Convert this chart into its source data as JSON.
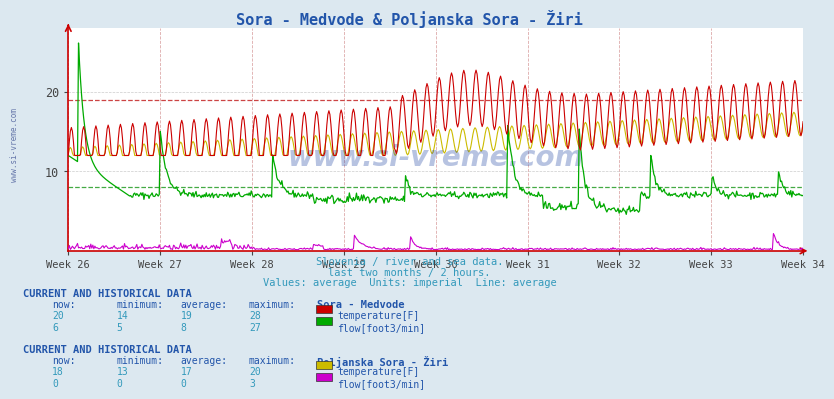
{
  "title": "Sora - Medvode & Poljanska Sora - Žiri",
  "bg_color": "#dce8f0",
  "plot_bg_color": "#ffffff",
  "subtitle_lines": [
    "Slovenia / river and sea data.",
    "last two months / 2 hours.",
    "Values: average  Units: imperial  Line: average"
  ],
  "x_tick_labels": [
    "Week 26",
    "Week 27",
    "Week 28",
    "Week 29",
    "Week 30",
    "Week 31",
    "Week 32",
    "Week 33",
    "Week 34"
  ],
  "ylim": [
    0,
    28
  ],
  "yticks": [
    10,
    20
  ],
  "n_points": 720,
  "avg_lines": {
    "red_avg": 19,
    "green_avg": 8
  },
  "colors": {
    "red": "#cc0000",
    "green": "#00aa00",
    "yellow": "#ccbb00",
    "magenta": "#cc00cc",
    "avg_red": "#cc4444",
    "avg_green": "#44aa44",
    "grid_v": "#ddaaaa",
    "grid_h": "#cccccc",
    "axis_color": "#cc0000",
    "text_blue": "#2255aa",
    "text_cyan": "#3399bb",
    "watermark": "#3355aa"
  },
  "table1": {
    "station": "Sora - Medvode",
    "rows": [
      {
        "now": 20,
        "min": 14,
        "avg": 19,
        "max": 28,
        "color": "#cc0000",
        "label": "temperature[F]"
      },
      {
        "now": 6,
        "min": 5,
        "avg": 8,
        "max": 27,
        "color": "#00aa00",
        "label": "flow[foot3/min]"
      }
    ]
  },
  "table2": {
    "station": "Poljanska Sora - Žiri",
    "rows": [
      {
        "now": 18,
        "min": 13,
        "avg": 17,
        "max": 20,
        "color": "#ccbb00",
        "label": "temperature[F]"
      },
      {
        "now": 0,
        "min": 0,
        "avg": 0,
        "max": 3,
        "color": "#cc00cc",
        "label": "flow[foot3/min]"
      }
    ]
  },
  "watermark": "www.si-vreme.com"
}
